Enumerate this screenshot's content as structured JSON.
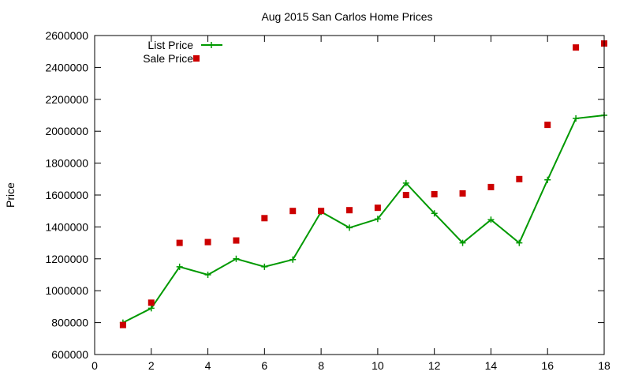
{
  "chart_data": {
    "type": "line",
    "title": "Aug 2015 San Carlos Home Prices",
    "xlabel": "",
    "ylabel": "Price",
    "xlim": [
      0,
      18
    ],
    "ylim": [
      600000,
      2600000
    ],
    "x_ticks": [
      0,
      2,
      4,
      6,
      8,
      10,
      12,
      14,
      16,
      18
    ],
    "y_ticks": [
      600000,
      800000,
      1000000,
      1200000,
      1400000,
      1600000,
      1800000,
      2000000,
      2200000,
      2400000,
      2600000
    ],
    "grid": false,
    "legend_position": "top-left",
    "series": [
      {
        "name": "List Price",
        "style": "line-with-plus-markers",
        "color": "#009900",
        "x": [
          1,
          2,
          3,
          4,
          5,
          6,
          7,
          8,
          9,
          10,
          11,
          12,
          13,
          14,
          15,
          16,
          17,
          18
        ],
        "values": [
          800000,
          890000,
          1150000,
          1100000,
          1200000,
          1150000,
          1195000,
          1495000,
          1395000,
          1450000,
          1675000,
          1485000,
          1300000,
          1445000,
          1300000,
          1695000,
          2080000,
          2100000
        ]
      },
      {
        "name": "Sale Price",
        "style": "square-markers",
        "color": "#cc0000",
        "x": [
          1,
          2,
          3,
          4,
          5,
          6,
          7,
          8,
          9,
          10,
          11,
          12,
          13,
          14,
          15,
          16,
          17,
          18
        ],
        "values": [
          785000,
          925000,
          1300000,
          1305000,
          1315000,
          1455000,
          1500000,
          1500000,
          1505000,
          1520000,
          1600000,
          1605000,
          1610000,
          1650000,
          1700000,
          2040000,
          2525000,
          2550000
        ]
      }
    ]
  }
}
